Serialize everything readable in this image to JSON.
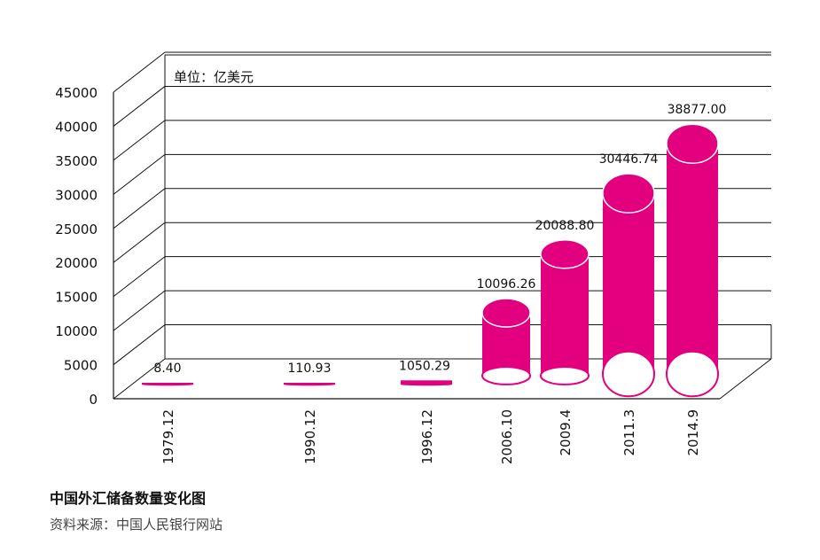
{
  "chart_data": {
    "type": "bar",
    "style": "3d-cylinder",
    "unit_label": "单位：亿美元",
    "categories": [
      "1979.12",
      "1990.12",
      "1996.12",
      "2006.10",
      "2009.4",
      "2011.3",
      "2014.9"
    ],
    "values": [
      8.4,
      110.93,
      1050.29,
      10096.26,
      20088.8,
      30446.74,
      38877.0
    ],
    "value_labels": [
      "8.40",
      "110.93",
      "1050.29",
      "10096.26",
      "20088.80",
      "30446.74",
      "38877.00"
    ],
    "y_ticks": [
      0,
      5000,
      10000,
      15000,
      20000,
      25000,
      30000,
      35000,
      40000,
      45000
    ],
    "ylim": [
      0,
      45000
    ],
    "grid": true,
    "bar_color": "#e3007f"
  },
  "footer": {
    "title": "中国外汇储备数量变化图",
    "source": "资料来源：中国人民银行网站"
  }
}
